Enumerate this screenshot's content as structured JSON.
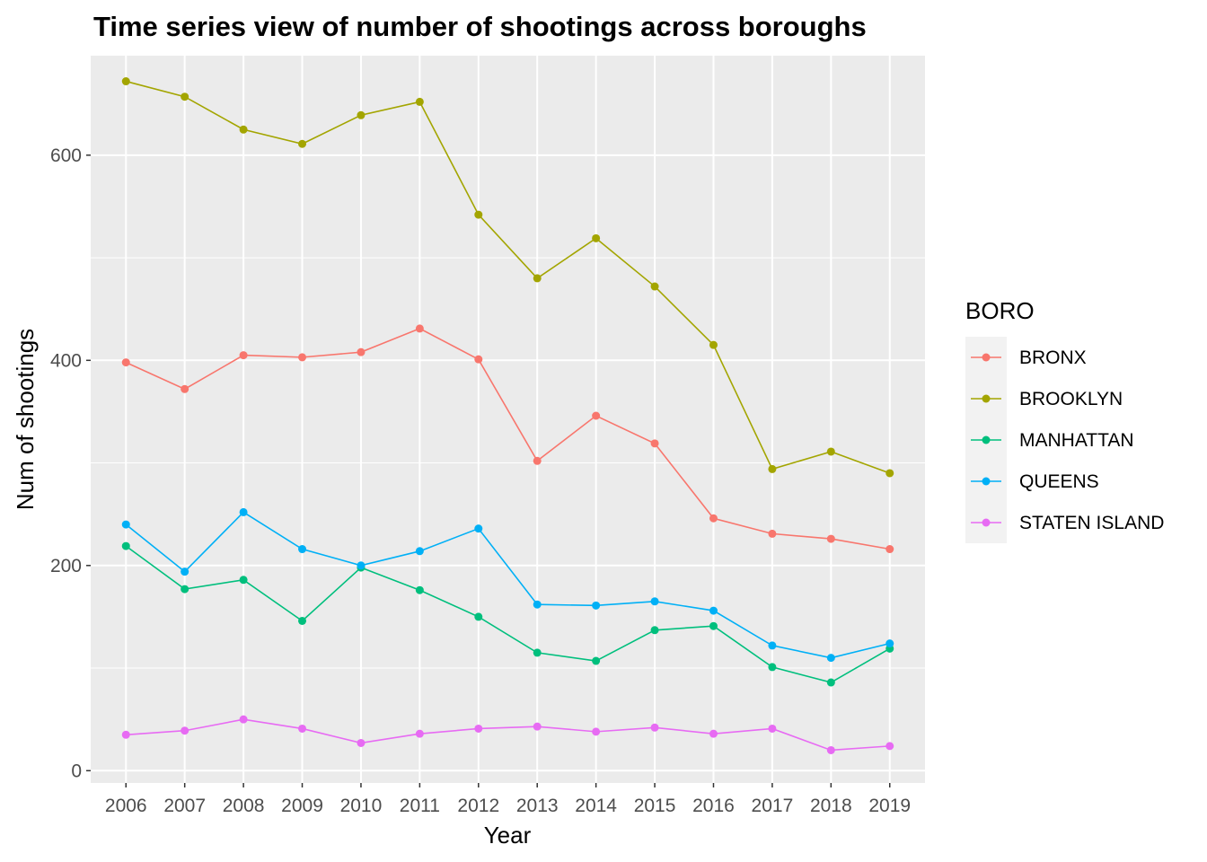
{
  "chart_data": {
    "type": "line",
    "title": "Time series view of number of shootings across boroughs",
    "xlabel": "Year",
    "ylabel": "Num of shootings",
    "x": [
      2006,
      2007,
      2008,
      2009,
      2010,
      2011,
      2012,
      2013,
      2014,
      2015,
      2016,
      2017,
      2018,
      2019
    ],
    "y_ticks": [
      0,
      200,
      400,
      600
    ],
    "ylim": [
      -12,
      697
    ],
    "grid": true,
    "legend": {
      "title": "BORO",
      "position": "right"
    },
    "series": [
      {
        "name": "BRONX",
        "color": "#F8766D",
        "values": [
          398,
          372,
          405,
          403,
          408,
          431,
          401,
          302,
          346,
          319,
          246,
          231,
          226,
          216
        ]
      },
      {
        "name": "BROOKLYN",
        "color": "#A3A500",
        "values": [
          672,
          657,
          625,
          611,
          639,
          652,
          542,
          480,
          519,
          472,
          415,
          294,
          311,
          290
        ]
      },
      {
        "name": "MANHATTAN",
        "color": "#00BF7D",
        "values": [
          219,
          177,
          186,
          146,
          198,
          176,
          150,
          115,
          107,
          137,
          141,
          101,
          86,
          119
        ]
      },
      {
        "name": "QUEENS",
        "color": "#00B0F6",
        "values": [
          240,
          194,
          252,
          216,
          200,
          214,
          236,
          162,
          161,
          165,
          156,
          122,
          110,
          124
        ]
      },
      {
        "name": "STATEN ISLAND",
        "color": "#E76BF3",
        "values": [
          35,
          39,
          50,
          41,
          27,
          36,
          41,
          43,
          38,
          42,
          36,
          41,
          20,
          24
        ]
      }
    ]
  }
}
